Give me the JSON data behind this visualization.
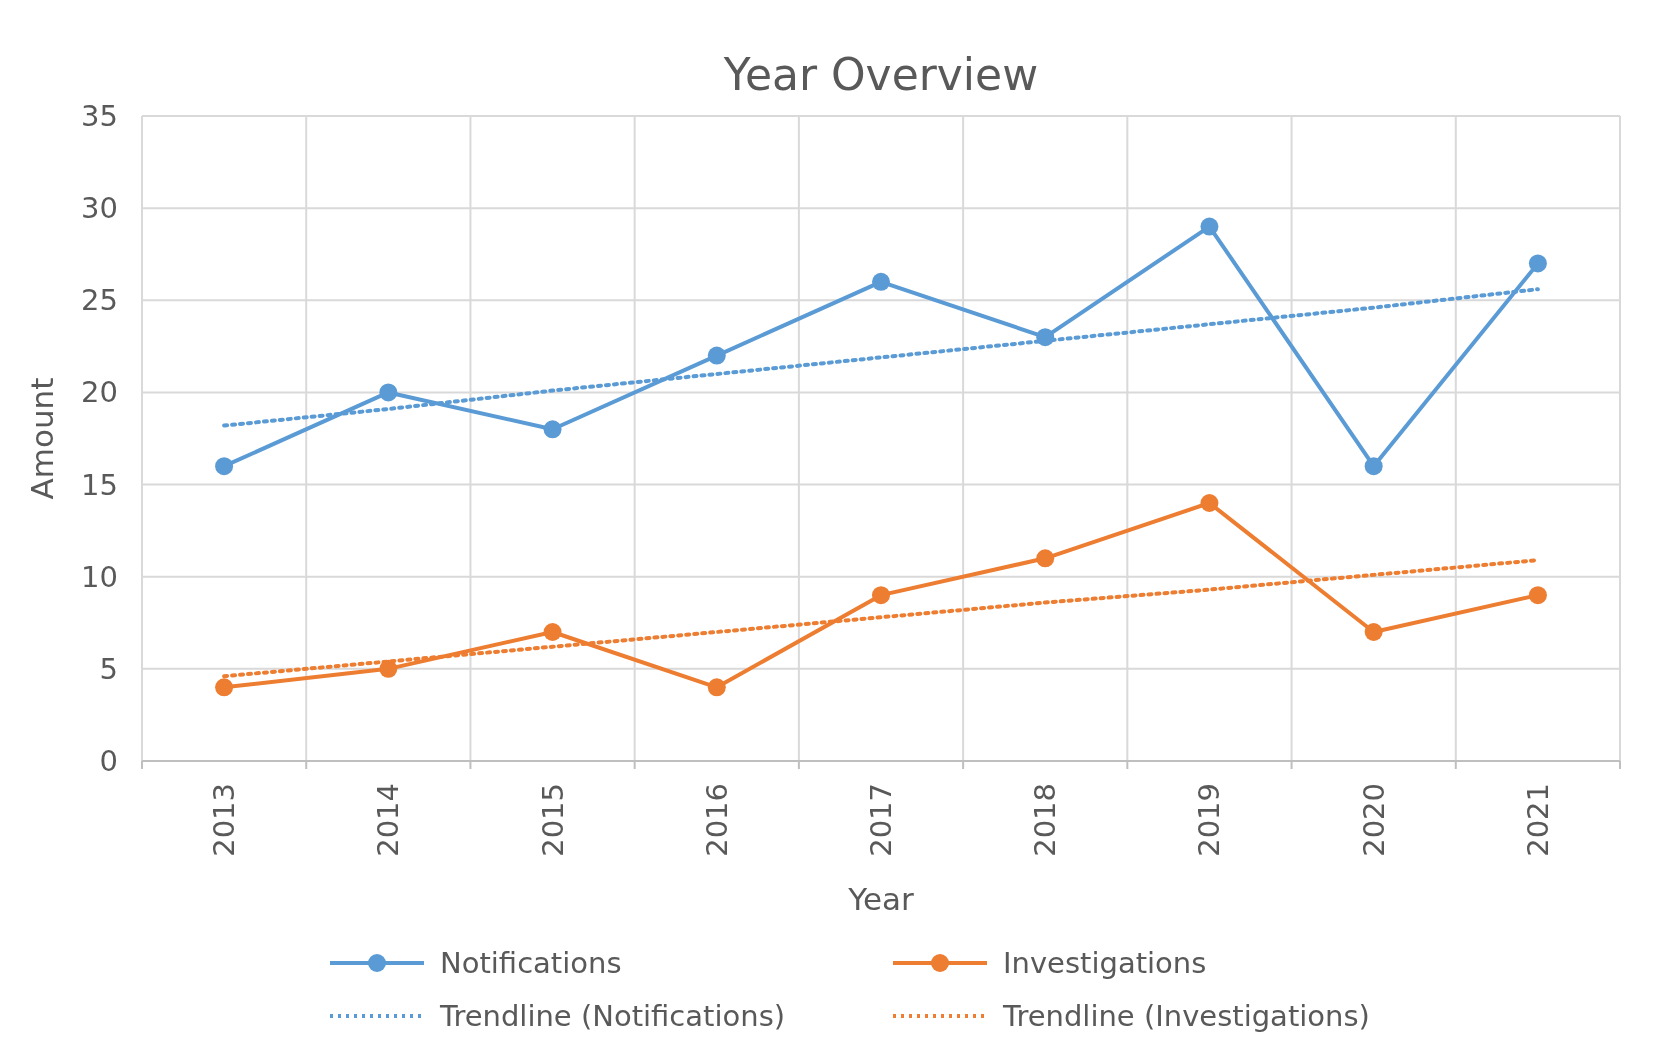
{
  "chart_data": {
    "type": "line",
    "title": "Year Overview",
    "xlabel": "Year",
    "ylabel": "Amount",
    "categories": [
      "2013",
      "2014",
      "2015",
      "2016",
      "2017",
      "2018",
      "2019",
      "2020",
      "2021"
    ],
    "series": [
      {
        "name": "Notifications",
        "color": "#5b9bd5",
        "values": [
          16,
          20,
          18,
          22,
          26,
          23,
          29,
          16,
          27
        ],
        "marker": "circle",
        "line_style": "solid"
      },
      {
        "name": "Investigations",
        "color": "#ed7d31",
        "values": [
          4,
          5,
          7,
          4,
          9,
          11,
          14,
          7,
          9
        ],
        "marker": "circle",
        "line_style": "solid"
      },
      {
        "name": "Trendline (Notifications)",
        "color": "#5b9bd5",
        "values": [
          18.2,
          19.1,
          20.1,
          21.0,
          21.9,
          22.8,
          23.7,
          24.6,
          25.6
        ],
        "marker": "none",
        "line_style": "dotted"
      },
      {
        "name": "Trendline (Investigations)",
        "color": "#ed7d31",
        "values": [
          4.6,
          5.4,
          6.2,
          7.0,
          7.8,
          8.6,
          9.3,
          10.1,
          10.9
        ],
        "marker": "none",
        "line_style": "dotted"
      }
    ],
    "ylim": [
      0,
      35
    ],
    "yticks": [
      0,
      5,
      10,
      15,
      20,
      25,
      30,
      35
    ],
    "grid": true,
    "legend": "bottom"
  }
}
